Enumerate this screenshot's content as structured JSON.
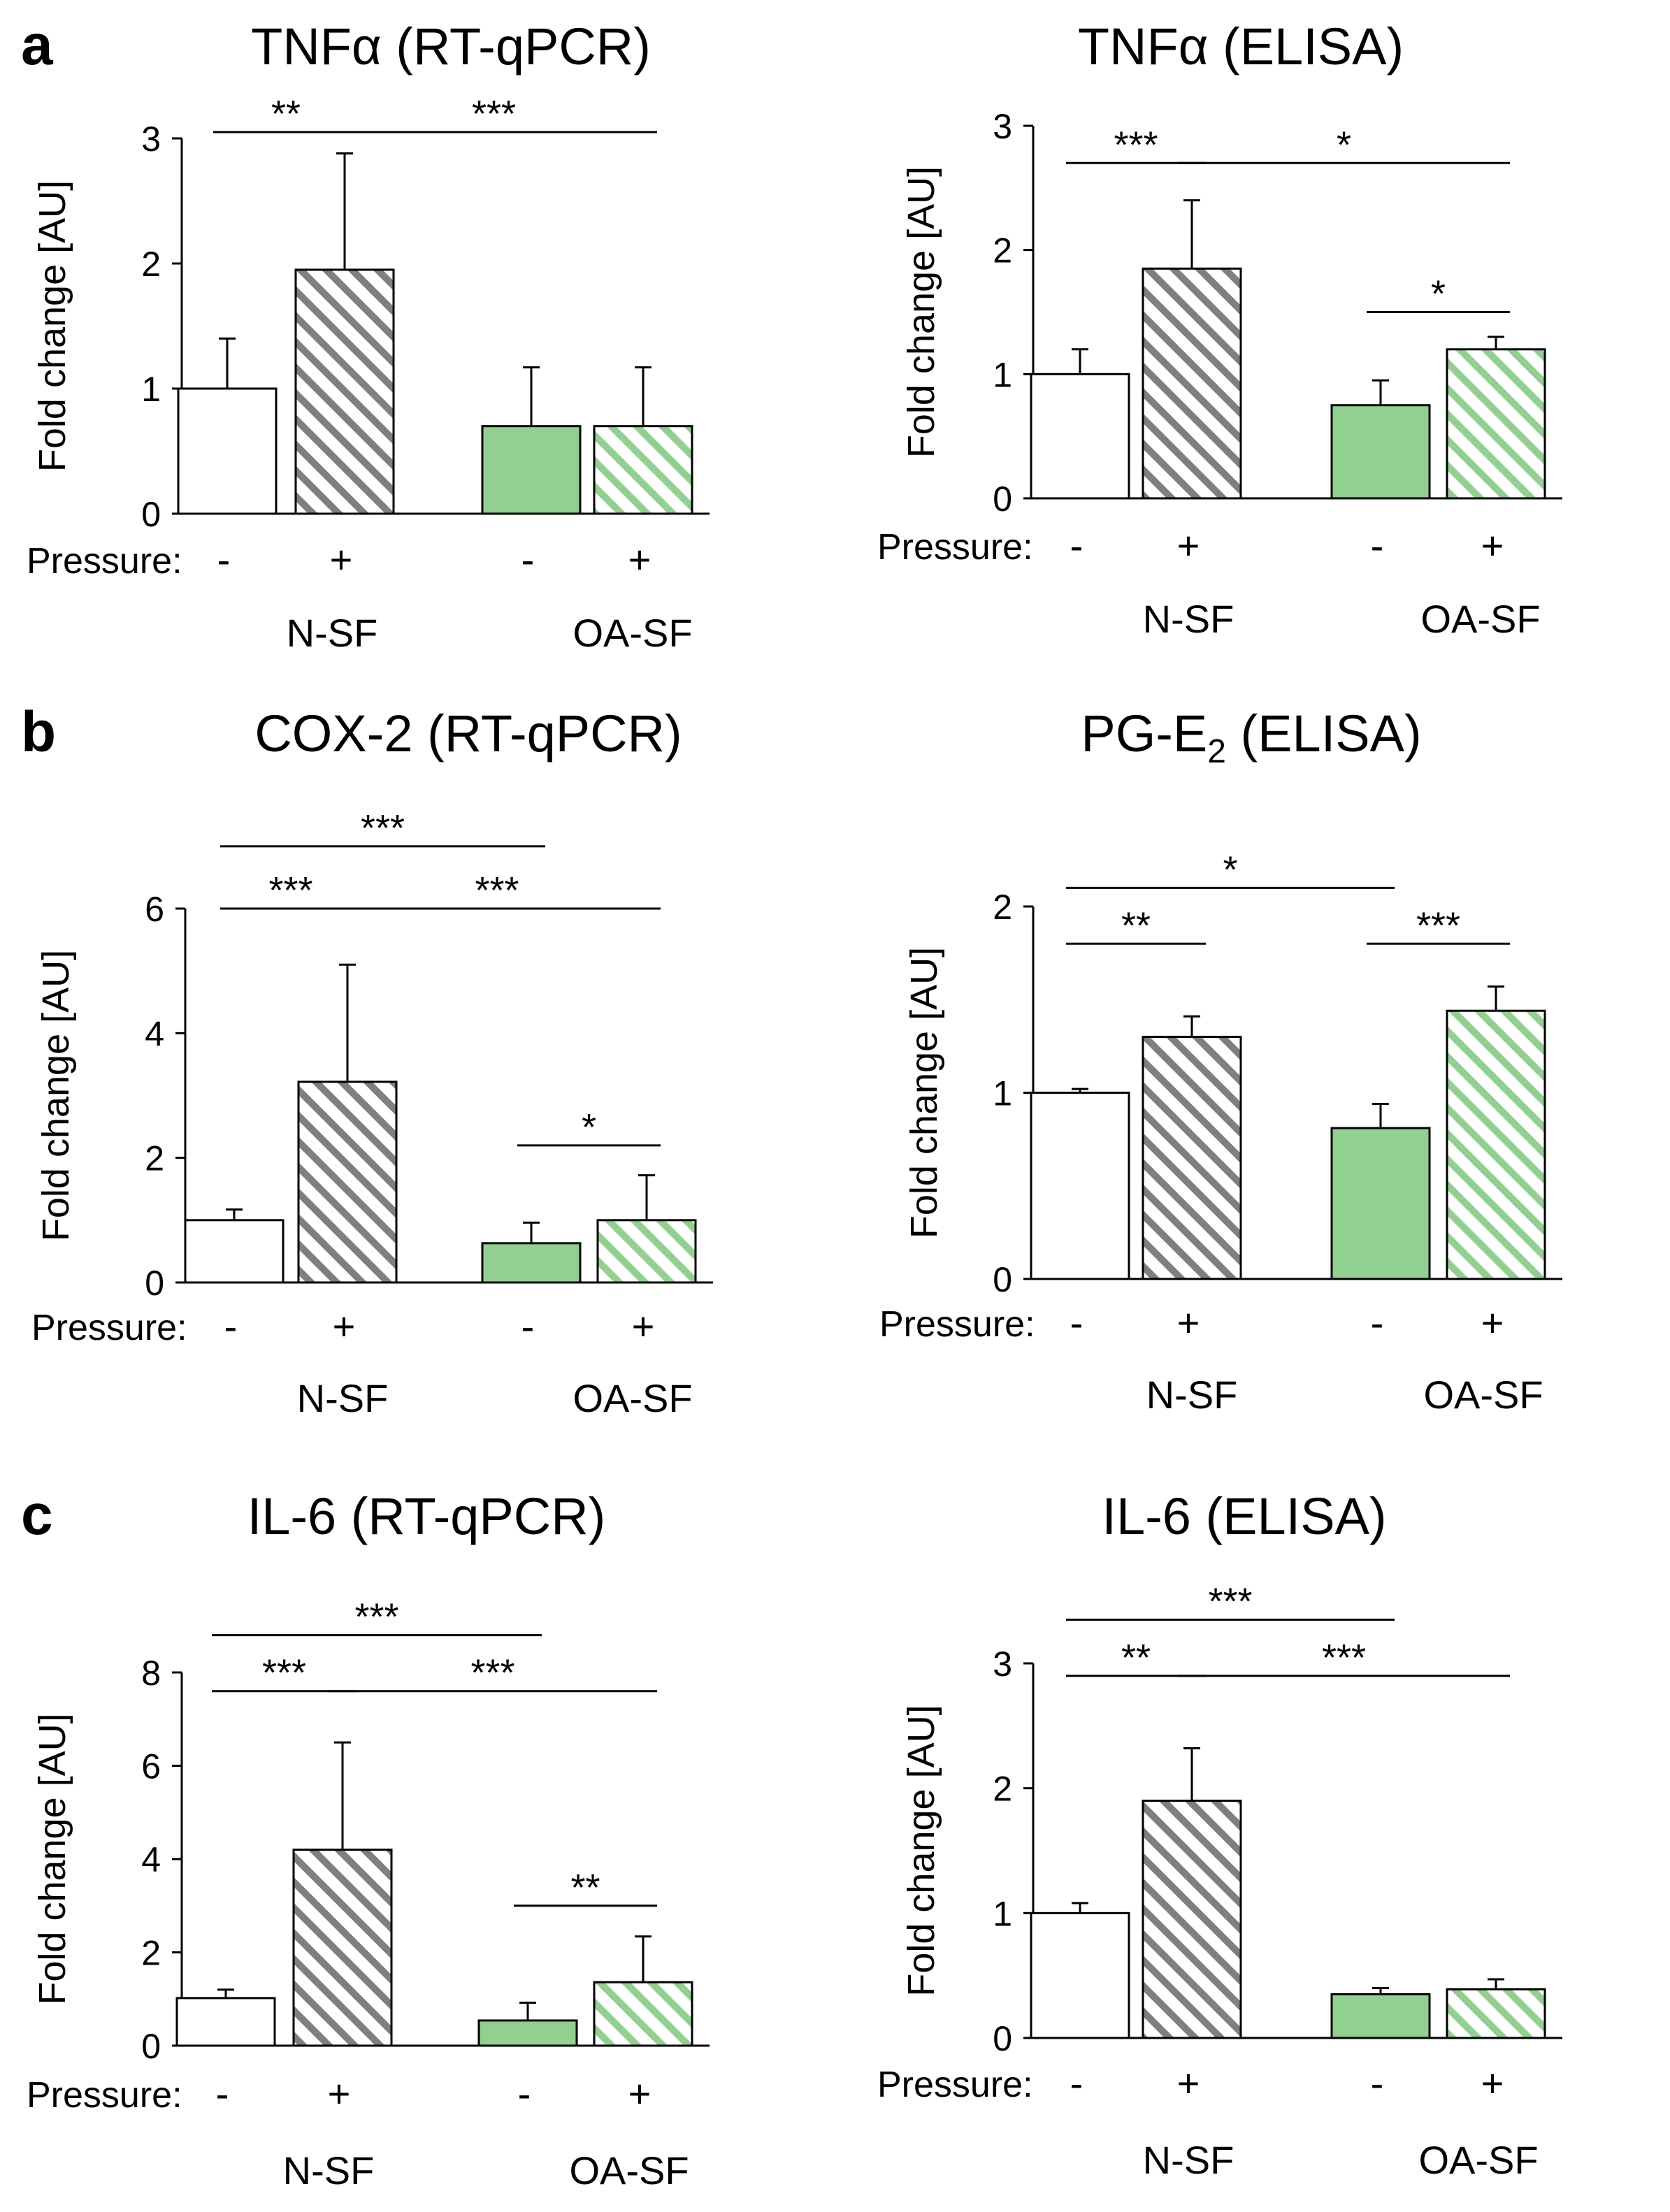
{
  "colors": {
    "n_sf_fill": "#ffffff",
    "n_sf_hatch": "#7f7f7f",
    "oa_sf_fill": "#92d08f",
    "oa_sf_hatch": "#92d08f",
    "stroke": "#000000"
  },
  "panel_letters": [
    "a",
    "b",
    "c"
  ],
  "chart_data": [
    {
      "type": "bar",
      "panel": "a",
      "title": "TNFα (RT-qPCR)",
      "ylabel": "Fold change [AU]",
      "ylim": [
        0,
        3
      ],
      "yticks": [
        "0",
        "1",
        "2",
        "3"
      ],
      "pressure_label": "Pressure:",
      "pressure_signs": [
        "-",
        "+",
        "-",
        "+"
      ],
      "groups": [
        "N-SF",
        "OA-SF"
      ],
      "bars": [
        {
          "group": "N-SF",
          "pressure": "-",
          "value": 1.0,
          "error": 0.4
        },
        {
          "group": "N-SF",
          "pressure": "+",
          "value": 1.95,
          "error": 0.93
        },
        {
          "group": "OA-SF",
          "pressure": "-",
          "value": 0.7,
          "error": 0.47
        },
        {
          "group": "OA-SF",
          "pressure": "+",
          "value": 0.7,
          "error": 0.47
        }
      ],
      "significance": [
        {
          "from": 0,
          "to": 1,
          "level": 3.05,
          "label": "**"
        },
        {
          "from": 1,
          "to": 3,
          "level": 3.05,
          "label": "***"
        }
      ]
    },
    {
      "type": "bar",
      "panel": "a",
      "title": "TNFα (ELISA)",
      "ylabel": "Fold change [AU]",
      "ylim": [
        0,
        3
      ],
      "yticks": [
        "0",
        "1",
        "2",
        "3"
      ],
      "pressure_label": "Pressure:",
      "pressure_signs": [
        "-",
        "+",
        "-",
        "+"
      ],
      "groups": [
        "N-SF",
        "OA-SF"
      ],
      "bars": [
        {
          "group": "N-SF",
          "pressure": "-",
          "value": 1.0,
          "error": 0.2
        },
        {
          "group": "N-SF",
          "pressure": "+",
          "value": 1.85,
          "error": 0.55
        },
        {
          "group": "OA-SF",
          "pressure": "-",
          "value": 0.75,
          "error": 0.2
        },
        {
          "group": "OA-SF",
          "pressure": "+",
          "value": 1.2,
          "error": 0.1
        }
      ],
      "significance": [
        {
          "from": 0,
          "to": 1,
          "level": 2.7,
          "label": "***"
        },
        {
          "from": 1,
          "to": 3,
          "level": 2.7,
          "label": "*"
        },
        {
          "from": 2,
          "to": 3,
          "level": 1.5,
          "label": "*"
        }
      ]
    },
    {
      "type": "bar",
      "panel": "b",
      "title": "COX-2 (RT-qPCR)",
      "ylabel": "Fold change [AU]",
      "ylim": [
        0,
        6
      ],
      "yticks": [
        "0",
        "2",
        "4",
        "6"
      ],
      "pressure_label": "Pressure:",
      "pressure_signs": [
        "-",
        "+",
        "-",
        "+"
      ],
      "groups": [
        "N-SF",
        "OA-SF"
      ],
      "bars": [
        {
          "group": "N-SF",
          "pressure": "-",
          "value": 1.0,
          "error": 0.17
        },
        {
          "group": "N-SF",
          "pressure": "+",
          "value": 3.22,
          "error": 1.88
        },
        {
          "group": "OA-SF",
          "pressure": "-",
          "value": 0.63,
          "error": 0.33
        },
        {
          "group": "OA-SF",
          "pressure": "+",
          "value": 1.0,
          "error": 0.72
        }
      ],
      "significance": [
        {
          "from": 0,
          "to": 2,
          "level": 7.0,
          "label": "***"
        },
        {
          "from": 0,
          "to": 1,
          "level": 6.0,
          "label": "***"
        },
        {
          "from": 1,
          "to": 3,
          "level": 6.0,
          "label": "***"
        },
        {
          "from": 2,
          "to": 3,
          "level": 2.2,
          "label": "*"
        }
      ]
    },
    {
      "type": "bar",
      "panel": "b",
      "title": "PG-E",
      "title_subscript": "2",
      "title_suffix": " (ELISA)",
      "ylabel": "Fold change [AU]",
      "ylim": [
        0,
        2
      ],
      "yticks": [
        "0",
        "1",
        "2"
      ],
      "pressure_label": "Pressure:",
      "pressure_signs": [
        "-",
        "+",
        "-",
        "+"
      ],
      "groups": [
        "N-SF",
        "OA-SF"
      ],
      "bars": [
        {
          "group": "N-SF",
          "pressure": "-",
          "value": 1.0,
          "error": 0.02
        },
        {
          "group": "N-SF",
          "pressure": "+",
          "value": 1.3,
          "error": 0.11
        },
        {
          "group": "OA-SF",
          "pressure": "-",
          "value": 0.81,
          "error": 0.13
        },
        {
          "group": "OA-SF",
          "pressure": "+",
          "value": 1.44,
          "error": 0.13
        }
      ],
      "significance": [
        {
          "from": 0,
          "to": 2,
          "level": 2.1,
          "label": "*"
        },
        {
          "from": 0,
          "to": 1,
          "level": 1.8,
          "label": "**"
        },
        {
          "from": 2,
          "to": 3,
          "level": 1.8,
          "label": "***"
        }
      ]
    },
    {
      "type": "bar",
      "panel": "c",
      "title": "IL-6 (RT-qPCR)",
      "ylabel": "Fold change [AU]",
      "ylim": [
        0,
        8
      ],
      "yticks": [
        "0",
        "2",
        "4",
        "6",
        "8"
      ],
      "pressure_label": "Pressure:",
      "pressure_signs": [
        "-",
        "+",
        "-",
        "+"
      ],
      "groups": [
        "N-SF",
        "OA-SF"
      ],
      "bars": [
        {
          "group": "N-SF",
          "pressure": "-",
          "value": 1.02,
          "error": 0.18
        },
        {
          "group": "N-SF",
          "pressure": "+",
          "value": 4.2,
          "error": 2.3
        },
        {
          "group": "OA-SF",
          "pressure": "-",
          "value": 0.54,
          "error": 0.38
        },
        {
          "group": "OA-SF",
          "pressure": "+",
          "value": 1.36,
          "error": 0.98
        }
      ],
      "significance": [
        {
          "from": 0,
          "to": 2,
          "level": 8.8,
          "label": "***"
        },
        {
          "from": 0,
          "to": 1,
          "level": 7.6,
          "label": "***"
        },
        {
          "from": 1,
          "to": 3,
          "level": 7.6,
          "label": "***"
        },
        {
          "from": 2,
          "to": 3,
          "level": 3.0,
          "label": "**"
        }
      ]
    },
    {
      "type": "bar",
      "panel": "c",
      "title": "IL-6 (ELISA)",
      "ylabel": "Fold change [AU]",
      "ylim": [
        0,
        3
      ],
      "yticks": [
        "0",
        "1",
        "2",
        "3"
      ],
      "pressure_label": "Pressure:",
      "pressure_signs": [
        "-",
        "+",
        "-",
        "+"
      ],
      "groups": [
        "N-SF",
        "OA-SF"
      ],
      "bars": [
        {
          "group": "N-SF",
          "pressure": "-",
          "value": 1.0,
          "error": 0.08
        },
        {
          "group": "N-SF",
          "pressure": "+",
          "value": 1.9,
          "error": 0.42
        },
        {
          "group": "OA-SF",
          "pressure": "-",
          "value": 0.35,
          "error": 0.05
        },
        {
          "group": "OA-SF",
          "pressure": "+",
          "value": 0.39,
          "error": 0.08
        }
      ],
      "significance": [
        {
          "from": 0,
          "to": 2,
          "level": 3.35,
          "label": "***"
        },
        {
          "from": 0,
          "to": 1,
          "level": 2.9,
          "label": "**"
        },
        {
          "from": 1,
          "to": 3,
          "level": 2.9,
          "label": "***"
        }
      ]
    }
  ]
}
